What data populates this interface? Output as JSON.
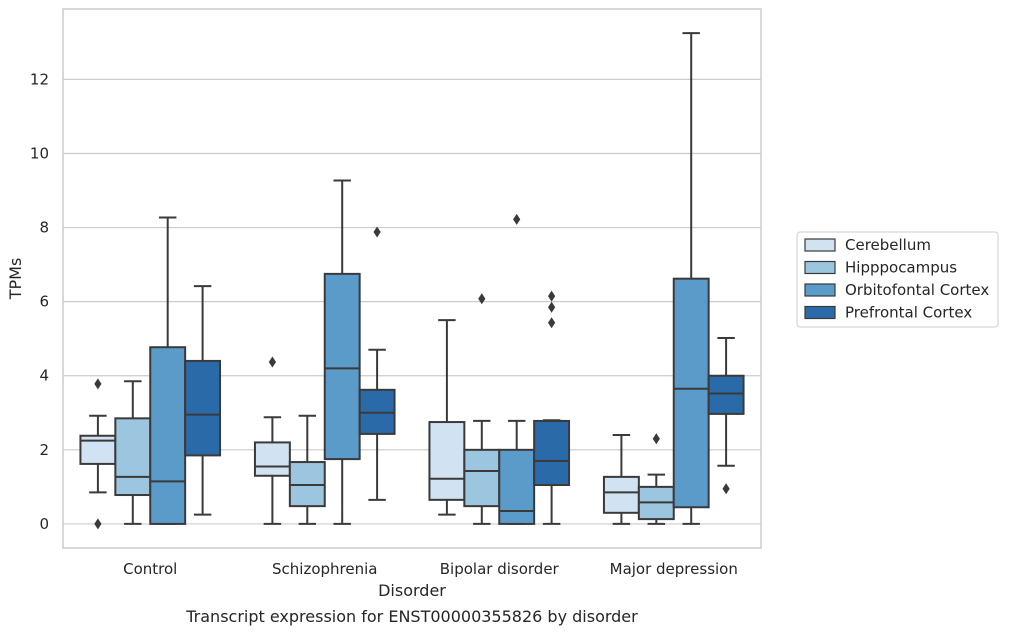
{
  "chart_data": {
    "type": "box",
    "caption": "Transcript expression for ENST00000355826 by disorder",
    "xlabel": "Disorder",
    "ylabel": "TPMs",
    "ylim": [
      -0.65,
      13.9
    ],
    "yticks": [
      0,
      2,
      4,
      6,
      8,
      10,
      12
    ],
    "grid": true,
    "legend_position": "right",
    "categories": [
      "Control",
      "Schizophrenia",
      "Bipolar disorder",
      "Major depression"
    ],
    "series": [
      {
        "name": "Cerebellum",
        "color": "#d1e2f2",
        "boxes": [
          {
            "whislo": 0.85,
            "q1": 1.62,
            "med": 2.25,
            "q3": 2.38,
            "whishi": 2.92,
            "fliers": [
              3.78,
              0.0
            ]
          },
          {
            "whislo": 0.0,
            "q1": 1.3,
            "med": 1.55,
            "q3": 2.2,
            "whishi": 2.88,
            "fliers": [
              4.37
            ]
          },
          {
            "whislo": 0.25,
            "q1": 0.65,
            "med": 1.22,
            "q3": 2.75,
            "whishi": 5.5,
            "fliers": []
          },
          {
            "whislo": 0.0,
            "q1": 0.3,
            "med": 0.85,
            "q3": 1.27,
            "whishi": 2.4,
            "fliers": []
          }
        ]
      },
      {
        "name": "Hipppocampus",
        "color": "#9cc5df",
        "boxes": [
          {
            "whislo": 0.0,
            "q1": 0.78,
            "med": 1.27,
            "q3": 2.85,
            "whishi": 3.85,
            "fliers": []
          },
          {
            "whislo": 0.0,
            "q1": 0.48,
            "med": 1.05,
            "q3": 1.67,
            "whishi": 2.92,
            "fliers": []
          },
          {
            "whislo": 0.0,
            "q1": 0.48,
            "med": 1.43,
            "q3": 2.0,
            "whishi": 2.78,
            "fliers": [
              6.08
            ]
          },
          {
            "whislo": 0.0,
            "q1": 0.13,
            "med": 0.58,
            "q3": 1.0,
            "whishi": 1.33,
            "fliers": [
              2.3
            ]
          }
        ]
      },
      {
        "name": "Orbitofontal Cortex",
        "color": "#5a9bc9",
        "boxes": [
          {
            "whislo": 0.0,
            "q1": 0.0,
            "med": 1.15,
            "q3": 4.77,
            "whishi": 8.27,
            "fliers": []
          },
          {
            "whislo": 0.0,
            "q1": 1.75,
            "med": 4.2,
            "q3": 6.75,
            "whishi": 9.27,
            "fliers": []
          },
          {
            "whislo": 0.0,
            "q1": 0.0,
            "med": 0.35,
            "q3": 2.0,
            "whishi": 2.78,
            "fliers": [
              8.22
            ]
          },
          {
            "whislo": 0.0,
            "q1": 0.45,
            "med": 3.65,
            "q3": 6.62,
            "whishi": 13.25,
            "fliers": []
          }
        ]
      },
      {
        "name": "Prefrontal Cortex",
        "color": "#2b6aa8",
        "boxes": [
          {
            "whislo": 0.25,
            "q1": 1.85,
            "med": 2.95,
            "q3": 4.4,
            "whishi": 6.42,
            "fliers": []
          },
          {
            "whislo": 0.65,
            "q1": 2.43,
            "med": 3.0,
            "q3": 3.62,
            "whishi": 4.7,
            "fliers": [
              7.88
            ]
          },
          {
            "whislo": 0.0,
            "q1": 1.05,
            "med": 1.7,
            "q3": 2.78,
            "whishi": 2.8,
            "fliers": [
              6.15,
              5.85,
              5.43
            ]
          },
          {
            "whislo": 1.57,
            "q1": 2.97,
            "med": 3.52,
            "q3": 4.0,
            "whishi": 5.02,
            "fliers": [
              0.95
            ]
          }
        ]
      }
    ]
  }
}
